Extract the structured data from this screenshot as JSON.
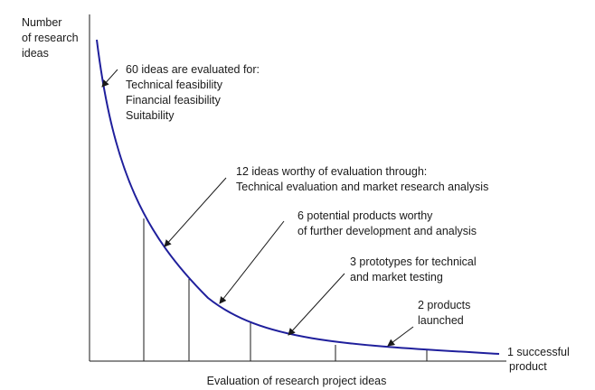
{
  "y_axis_label": [
    "Number",
    "of research",
    "ideas"
  ],
  "x_axis_label": "Evaluation of research project ideas",
  "curve_color": "#1f1f9c",
  "annotations": [
    {
      "lines": [
        "60 ideas are evaluated for:",
        "Technical feasibility",
        "Financial feasibility",
        "Suitability"
      ]
    },
    {
      "lines": [
        "12 ideas worthy of evaluation through:",
        "Technical evaluation and market research analysis"
      ]
    },
    {
      "lines": [
        "6 potential products worthy",
        "of further development and analysis"
      ]
    },
    {
      "lines": [
        "3 prototypes for technical",
        "and market testing"
      ]
    },
    {
      "lines": [
        "2 products",
        "launched"
      ]
    },
    {
      "lines": [
        "1 successful",
        "product"
      ]
    }
  ]
}
